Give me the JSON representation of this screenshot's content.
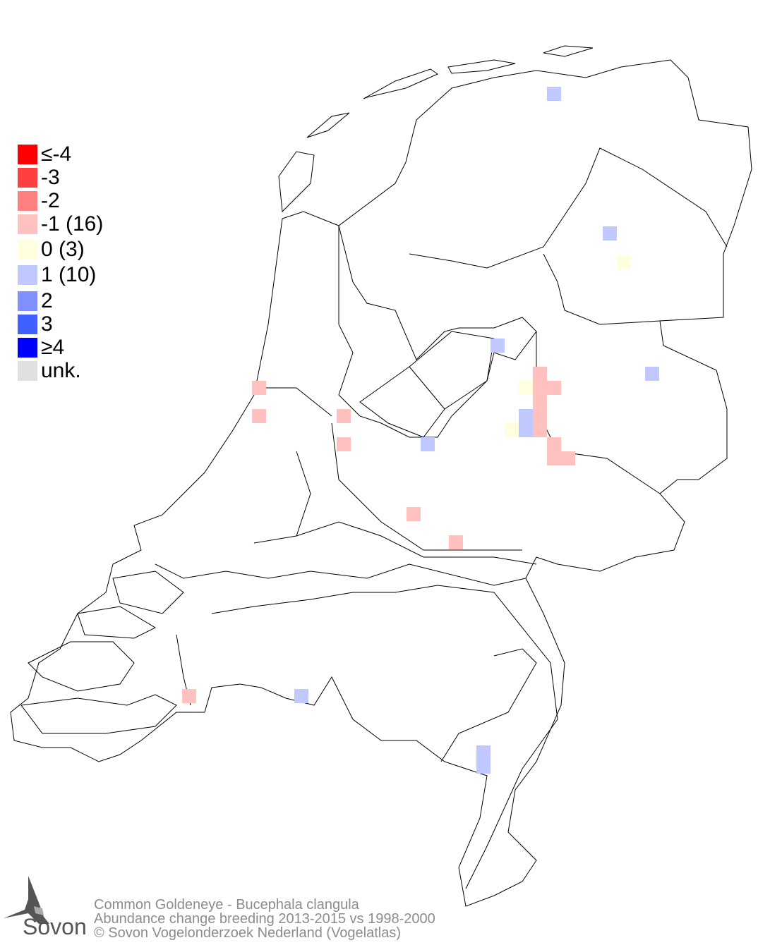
{
  "legend": {
    "items": [
      {
        "label": "≤-4",
        "color": "#ff0000"
      },
      {
        "label": "-3",
        "color": "#ff4040"
      },
      {
        "label": "-2",
        "color": "#ff8080"
      },
      {
        "label": "-1 (16)",
        "color": "#ffc0c0"
      },
      {
        "label": " 0 (3)",
        "color": "#ffffe0"
      },
      {
        "label": " 1 (10)",
        "color": "#c0c8ff"
      },
      {
        "label": " 2",
        "color": "#8090ff"
      },
      {
        "label": " 3",
        "color": "#4060ff"
      },
      {
        "label": "≥4",
        "color": "#0000ff"
      },
      {
        "label": "unk.",
        "color": "#e0e0e0"
      }
    ]
  },
  "map": {
    "region": "Netherlands",
    "cell_counts": {
      "-1": 16,
      "0": 3,
      "1": 10
    }
  },
  "footer": {
    "line1": "Common Goldeneye - Bucephala clangula",
    "line2": "Abundance change breeding  2013-2015 vs 1998-2000",
    "line3": "© Sovon Vogelonderzoek Nederland (Vogelatlas)"
  },
  "logo": {
    "text": "Sovon"
  }
}
